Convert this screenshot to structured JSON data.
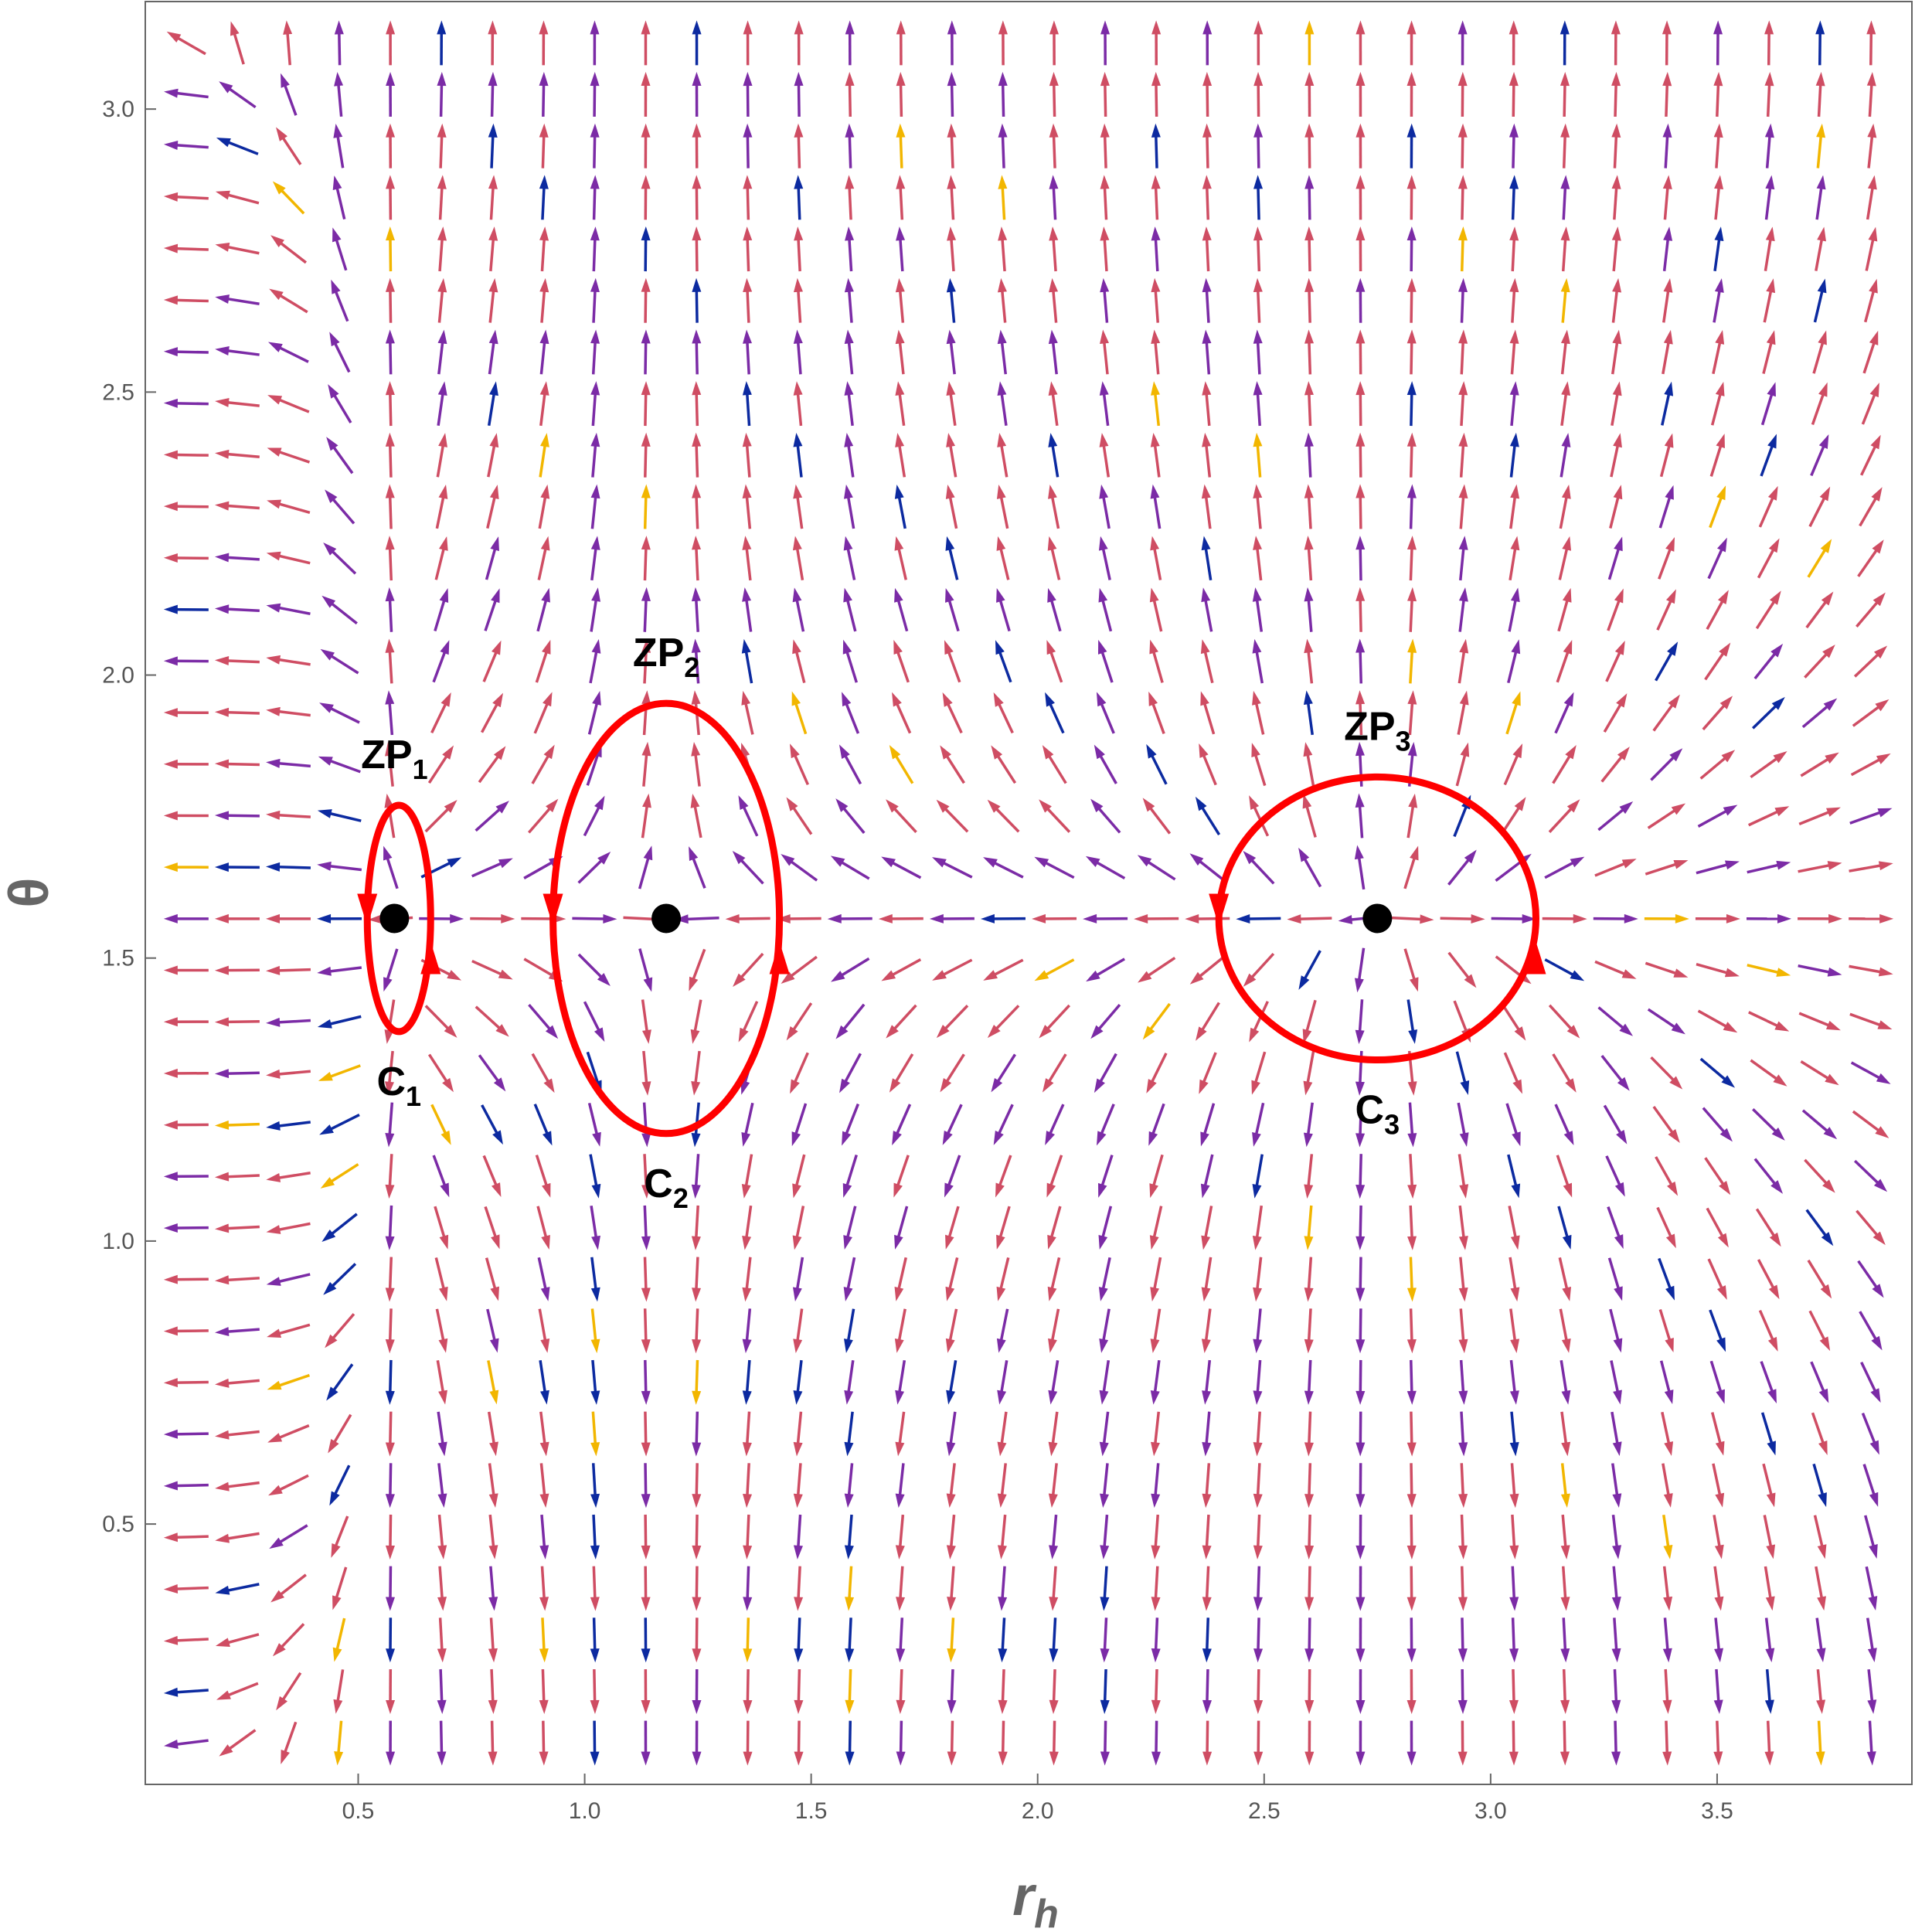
{
  "chart_data": {
    "type": "vector-field",
    "xlabel": "r",
    "xlabel_sub": "h",
    "ylabel": "θ",
    "xlim": [
      0.03,
      3.93
    ],
    "ylim": [
      0.04,
      3.19
    ],
    "xticks": [
      0.5,
      1.0,
      1.5,
      2.0,
      2.5,
      3.0,
      3.5
    ],
    "yticks": [
      0.5,
      1.0,
      1.5,
      2.0,
      2.5,
      3.0
    ],
    "arrow_colors": [
      "#cf4d63",
      "#7b2ba6",
      "#0c2aa0",
      "#f2b600"
    ],
    "contour_color": "#ff0000",
    "point_color": "#000000",
    "zero_points": [
      {
        "name": "ZP",
        "sub": "1",
        "r": 0.58,
        "theta": 1.57
      },
      {
        "name": "ZP",
        "sub": "2",
        "r": 1.18,
        "theta": 1.57
      },
      {
        "name": "ZP",
        "sub": "3",
        "r": 2.75,
        "theta": 1.57
      }
    ],
    "contours": [
      {
        "name": "C",
        "sub": "1",
        "r": 0.59,
        "theta": 1.57,
        "rx": 0.07,
        "ry": 0.2
      },
      {
        "name": "C",
        "sub": "2",
        "r": 1.18,
        "theta": 1.57,
        "rx": 0.25,
        "ry": 0.38
      },
      {
        "name": "C",
        "sub": "3",
        "r": 2.75,
        "theta": 1.57,
        "rx": 0.35,
        "ry": 0.25
      }
    ]
  }
}
